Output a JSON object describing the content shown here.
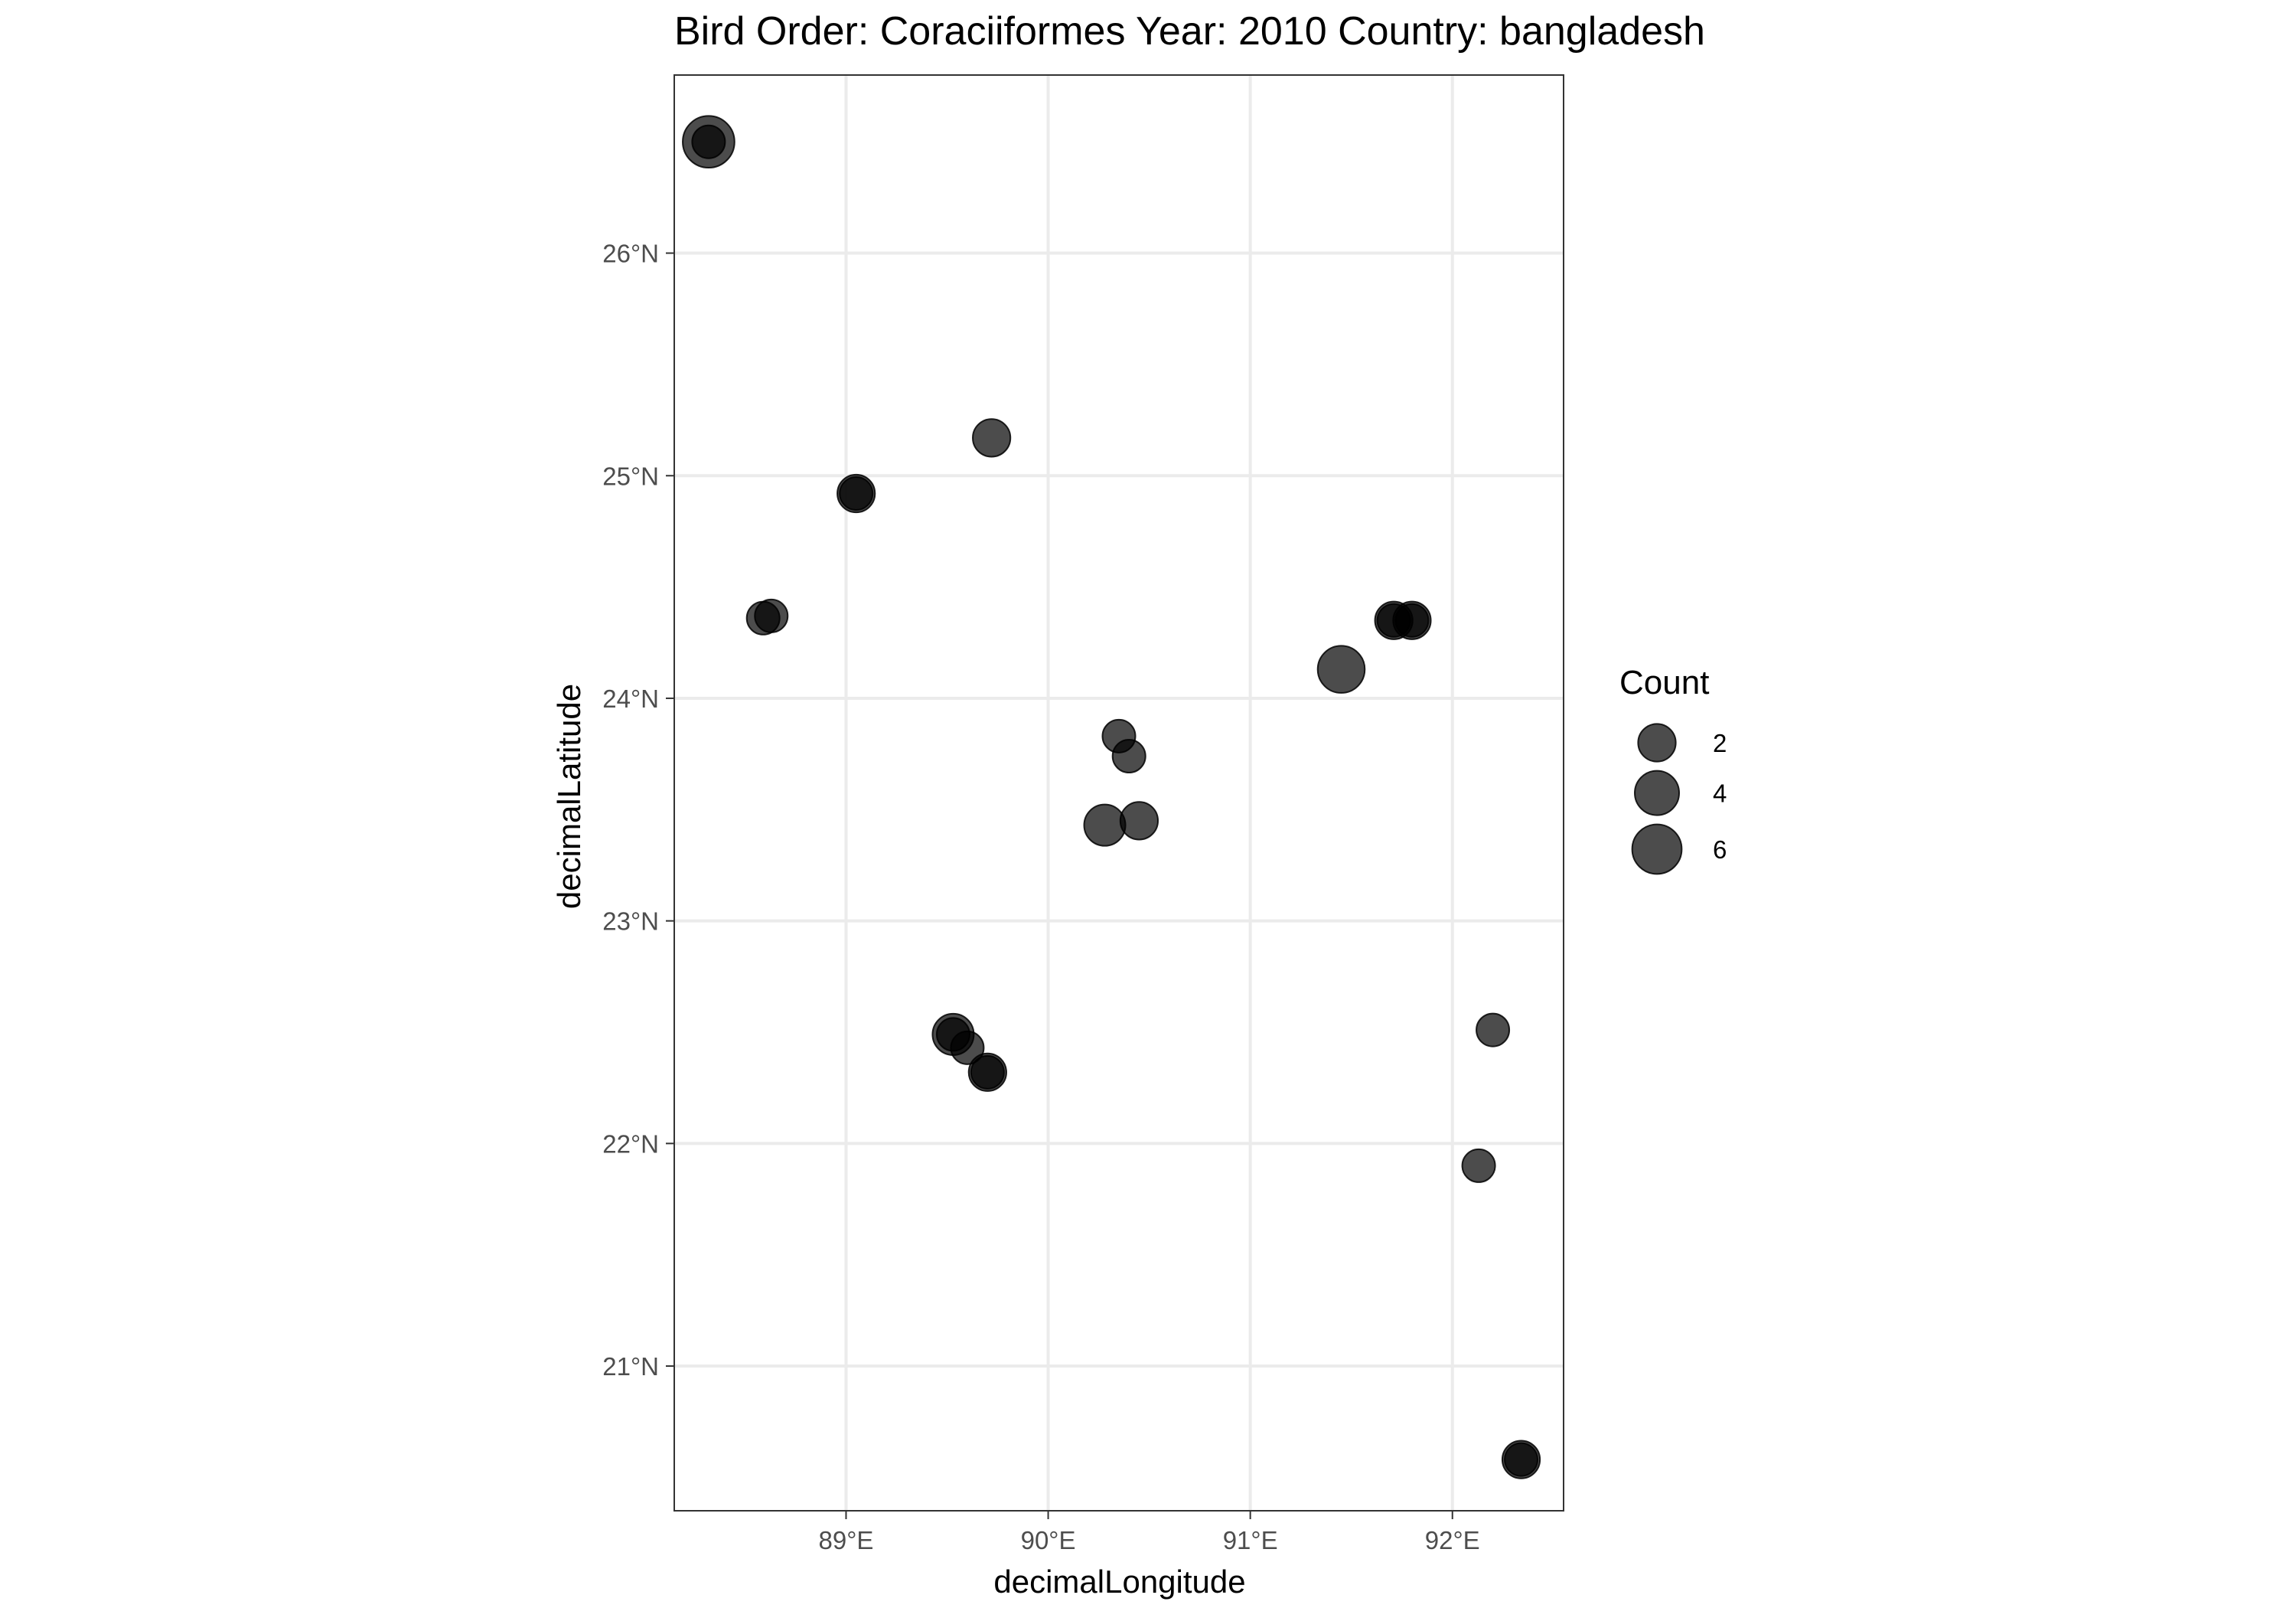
{
  "chart_data": {
    "type": "scatter",
    "title": "Bird Order: Coraciiformes Year: 2010 Country: bangladesh",
    "xlabel": "decimalLongitude",
    "ylabel": "decimalLatitude",
    "xlim": [
      88.15,
      92.55
    ],
    "ylim": [
      20.35,
      26.8
    ],
    "x_ticks": [
      89,
      90,
      91,
      92
    ],
    "x_tick_labels": [
      "89°E",
      "90°E",
      "91°E",
      "92°E"
    ],
    "y_ticks": [
      21,
      22,
      23,
      24,
      25,
      26
    ],
    "y_tick_labels": [
      "21°N",
      "22°N",
      "23°N",
      "24°N",
      "25°N",
      "26°N"
    ],
    "grid": true,
    "point_color": "#000000",
    "point_opacity": 0.7,
    "size_legend": {
      "title": "Count",
      "placement": "right",
      "entries": [
        {
          "label": "2",
          "count": 2
        },
        {
          "label": "4",
          "count": 4
        },
        {
          "label": "6",
          "count": 6
        }
      ]
    },
    "points": [
      {
        "lon": 88.32,
        "lat": 26.5,
        "count": 7
      },
      {
        "lon": 88.32,
        "lat": 26.5,
        "count": 1
      },
      {
        "lon": 89.72,
        "lat": 25.17,
        "count": 2
      },
      {
        "lon": 89.05,
        "lat": 24.92,
        "count": 2
      },
      {
        "lon": 89.05,
        "lat": 24.92,
        "count": 1
      },
      {
        "lon": 88.59,
        "lat": 24.36,
        "count": 1
      },
      {
        "lon": 88.63,
        "lat": 24.37,
        "count": 1
      },
      {
        "lon": 91.45,
        "lat": 24.13,
        "count": 5
      },
      {
        "lon": 91.71,
        "lat": 24.35,
        "count": 2
      },
      {
        "lon": 91.71,
        "lat": 24.35,
        "count": 1
      },
      {
        "lon": 91.8,
        "lat": 24.35,
        "count": 2
      },
      {
        "lon": 91.8,
        "lat": 24.35,
        "count": 1
      },
      {
        "lon": 90.35,
        "lat": 23.83,
        "count": 1
      },
      {
        "lon": 90.4,
        "lat": 23.74,
        "count": 1
      },
      {
        "lon": 90.28,
        "lat": 23.43,
        "count": 3
      },
      {
        "lon": 90.45,
        "lat": 23.45,
        "count": 2
      },
      {
        "lon": 89.53,
        "lat": 22.49,
        "count": 3
      },
      {
        "lon": 89.53,
        "lat": 22.49,
        "count": 1
      },
      {
        "lon": 89.6,
        "lat": 22.43,
        "count": 1
      },
      {
        "lon": 89.7,
        "lat": 22.32,
        "count": 2
      },
      {
        "lon": 89.7,
        "lat": 22.32,
        "count": 1
      },
      {
        "lon": 92.2,
        "lat": 22.51,
        "count": 1
      },
      {
        "lon": 92.13,
        "lat": 21.9,
        "count": 1
      },
      {
        "lon": 92.34,
        "lat": 20.58,
        "count": 2
      },
      {
        "lon": 92.34,
        "lat": 20.58,
        "count": 1
      }
    ]
  }
}
